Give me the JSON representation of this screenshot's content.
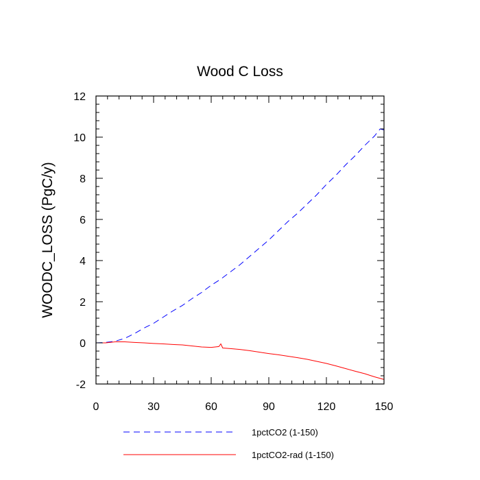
{
  "chart_data": {
    "type": "line",
    "title": "Wood C Loss",
    "xlabel": "",
    "ylabel": "WOODC_LOSS  (PgC/y)",
    "xlim": [
      0,
      150
    ],
    "ylim": [
      -2,
      12
    ],
    "xticks": [
      0,
      30,
      60,
      90,
      120,
      150
    ],
    "yticks": [
      -2,
      0,
      2,
      4,
      6,
      8,
      10,
      12
    ],
    "xtick_labels": [
      "0",
      "30",
      "60",
      "90",
      "120",
      "150"
    ],
    "ytick_labels": [
      "-2",
      "0",
      "2",
      "4",
      "6",
      "8",
      "10",
      "12"
    ],
    "grid": false,
    "legend_position": "bottom",
    "series": [
      {
        "name": "1pctCO2 (1-150)",
        "color": "#0000ff",
        "style": "dashed",
        "points": [
          [
            0,
            0.0
          ],
          [
            5,
            0.02
          ],
          [
            10,
            0.08
          ],
          [
            15,
            0.22
          ],
          [
            20,
            0.45
          ],
          [
            25,
            0.72
          ],
          [
            30,
            0.95
          ],
          [
            35,
            1.25
          ],
          [
            40,
            1.55
          ],
          [
            45,
            1.82
          ],
          [
            50,
            2.15
          ],
          [
            55,
            2.45
          ],
          [
            60,
            2.8
          ],
          [
            65,
            3.1
          ],
          [
            70,
            3.45
          ],
          [
            75,
            3.8
          ],
          [
            80,
            4.2
          ],
          [
            85,
            4.6
          ],
          [
            90,
            5.0
          ],
          [
            95,
            5.45
          ],
          [
            100,
            5.9
          ],
          [
            105,
            6.3
          ],
          [
            110,
            6.75
          ],
          [
            115,
            7.2
          ],
          [
            120,
            7.7
          ],
          [
            125,
            8.15
          ],
          [
            130,
            8.65
          ],
          [
            135,
            9.1
          ],
          [
            140,
            9.6
          ],
          [
            145,
            10.05
          ],
          [
            148,
            10.4
          ],
          [
            150,
            10.35
          ]
        ]
      },
      {
        "name": "1pctCO2-rad (1-150)",
        "color": "#ff0000",
        "style": "solid",
        "points": [
          [
            0,
            0.0
          ],
          [
            5,
            0.0
          ],
          [
            10,
            0.05
          ],
          [
            15,
            0.05
          ],
          [
            20,
            0.02
          ],
          [
            25,
            0.0
          ],
          [
            30,
            -0.03
          ],
          [
            35,
            -0.05
          ],
          [
            40,
            -0.08
          ],
          [
            45,
            -0.1
          ],
          [
            50,
            -0.15
          ],
          [
            55,
            -0.2
          ],
          [
            60,
            -0.22
          ],
          [
            64,
            -0.18
          ],
          [
            65,
            -0.05
          ],
          [
            66,
            -0.25
          ],
          [
            70,
            -0.28
          ],
          [
            75,
            -0.32
          ],
          [
            80,
            -0.38
          ],
          [
            85,
            -0.45
          ],
          [
            90,
            -0.52
          ],
          [
            95,
            -0.58
          ],
          [
            100,
            -0.65
          ],
          [
            105,
            -0.72
          ],
          [
            110,
            -0.8
          ],
          [
            115,
            -0.9
          ],
          [
            120,
            -1.0
          ],
          [
            125,
            -1.12
          ],
          [
            130,
            -1.25
          ],
          [
            135,
            -1.38
          ],
          [
            140,
            -1.5
          ],
          [
            145,
            -1.65
          ],
          [
            150,
            -1.78
          ]
        ]
      }
    ]
  }
}
